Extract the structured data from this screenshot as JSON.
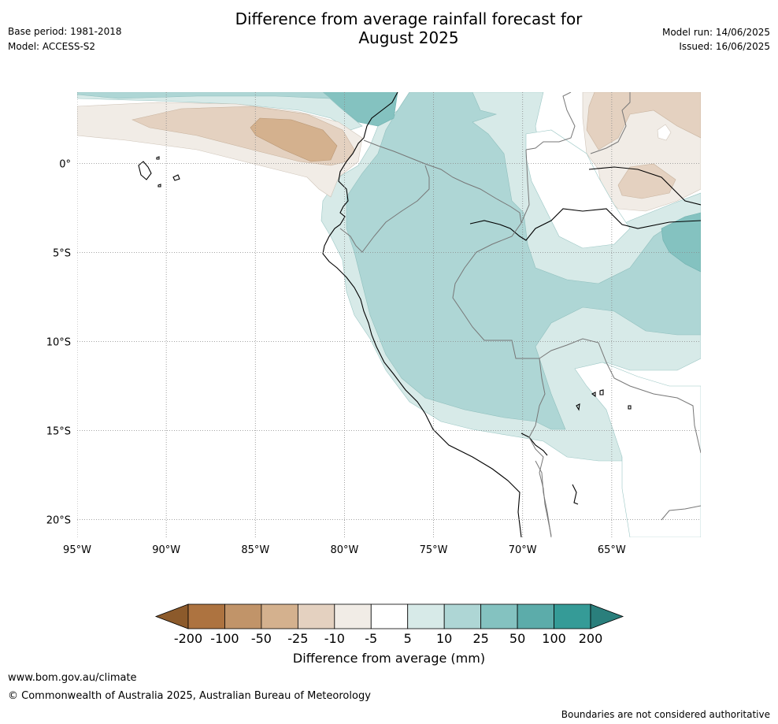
{
  "header": {
    "title_line1": "Difference from average rainfall forecast for",
    "title_line2": "August 2025",
    "base_period": "Base period: 1981-2018",
    "model": "Model: ACCESS-S2",
    "model_run": "Model run: 14/06/2025",
    "issued": "Issued: 16/06/2025"
  },
  "map": {
    "lon_range": [
      -95,
      -60
    ],
    "lat_range": [
      -21,
      4
    ],
    "lon_ticks": [
      "95°W",
      "90°W",
      "85°W",
      "80°W",
      "75°W",
      "70°W",
      "65°W"
    ],
    "lat_ticks": [
      "0°",
      "5°S",
      "10°S",
      "15°S",
      "20°S"
    ],
    "grid": true
  },
  "legend": {
    "title": "Difference from average (mm)",
    "ticks": [
      "-200",
      "-100",
      "-50",
      "-25",
      "-10",
      "-5",
      "5",
      "10",
      "25",
      "50",
      "100",
      "200"
    ],
    "colors": [
      "#8c5a2b",
      "#ad7340",
      "#c19469",
      "#d4b18e",
      "#e4d1c0",
      "#f1ece6",
      "#ffffff",
      "#d7eae8",
      "#aed6d5",
      "#84c2c0",
      "#5cacaa",
      "#359b97",
      "#2a7f7c"
    ]
  },
  "footer": {
    "url": "www.bom.gov.au/climate",
    "copyright": "© Commonwealth of Australia 2025, Australian Bureau of Meteorology",
    "disclaimer": "Boundaries are not considered authoritative"
  }
}
